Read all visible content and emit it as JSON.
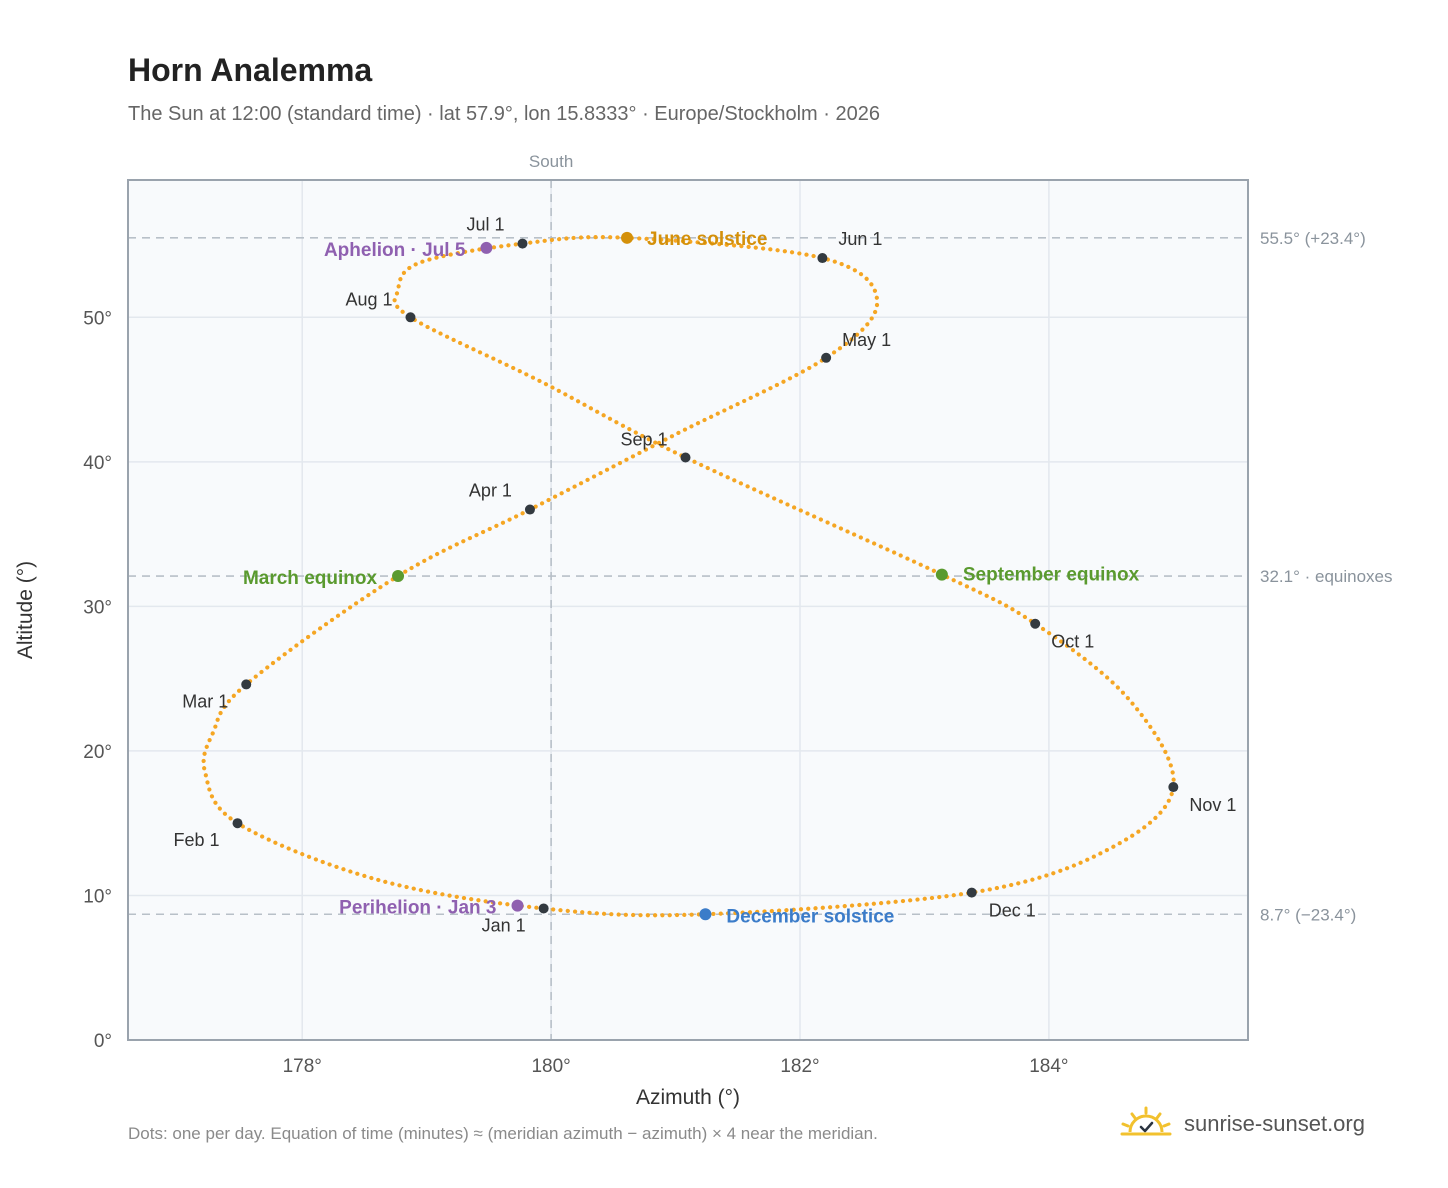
{
  "title": "Horn Analemma",
  "subtitle": "The Sun at 12:00 (standard time) · lat 57.9°, lon 15.8333° · Europe/Stockholm · 2026",
  "footer_note": "Dots: one per day. Equation of time (minutes) ≈ (meridian azimuth − azimuth) × 4 near the meridian.",
  "brand": {
    "text": "sunrise-sunset.org",
    "icon": "sun-logo-icon"
  },
  "colors": {
    "path": "#f5a623",
    "month_marker": "#333a40",
    "equinox": "#5a9a2f",
    "june_solstice": "#d4900a",
    "december_solstice": "#3b7cc9",
    "aphelion_perihelion": "#8f60b0",
    "plot_bg": "#f8fafc",
    "grid": "#e3e8ee",
    "frame": "#9aa3ad",
    "reference_line": "#b8c0c8"
  },
  "chart_data": {
    "type": "scatter",
    "xlabel": "Azimuth (°)",
    "ylabel": "Altitude (°)",
    "xlim": [
      176.6,
      185.6
    ],
    "ylim": [
      0,
      59.5
    ],
    "xticks": [
      178,
      180,
      182,
      184
    ],
    "xtick_labels": [
      "178°",
      "180°",
      "182°",
      "184°"
    ],
    "yticks": [
      0,
      10,
      20,
      30,
      40,
      50
    ],
    "ytick_labels": [
      "0°",
      "10°",
      "20°",
      "30°",
      "40°",
      "50°"
    ],
    "grid": true,
    "meridian": {
      "azimuth": 180,
      "label": "South"
    },
    "reference_lines": [
      {
        "altitude": 55.5,
        "label": "55.5° (+23.4°)"
      },
      {
        "altitude": 32.1,
        "label": "32.1° · equinoxes"
      },
      {
        "altitude": 8.7,
        "label": "8.7° (−23.4°)"
      }
    ],
    "daily_path": [
      {
        "date": "Jan 1",
        "az": 179.94,
        "alt": 9.1
      },
      {
        "date": "Jan 15",
        "az": 178.6,
        "alt": 11.1
      },
      {
        "date": "Feb 1",
        "az": 177.48,
        "alt": 15.0
      },
      {
        "date": "Feb 12",
        "az": 177.22,
        "alt": 18.5
      },
      {
        "date": "Feb 20",
        "az": 177.28,
        "alt": 21.2
      },
      {
        "date": "Mar 1",
        "az": 177.55,
        "alt": 24.6
      },
      {
        "date": "Mar 20",
        "az": 178.77,
        "alt": 32.1
      },
      {
        "date": "Apr 1",
        "az": 179.83,
        "alt": 36.7
      },
      {
        "date": "Apr 15",
        "az": 181.0,
        "alt": 41.9
      },
      {
        "date": "May 1",
        "az": 182.21,
        "alt": 47.2
      },
      {
        "date": "May 14",
        "az": 182.62,
        "alt": 51.1
      },
      {
        "date": "Jun 1",
        "az": 182.18,
        "alt": 54.1
      },
      {
        "date": "Jun 21",
        "az": 180.61,
        "alt": 55.5
      },
      {
        "date": "Jul 1",
        "az": 179.77,
        "alt": 55.1
      },
      {
        "date": "Jul 15",
        "az": 178.95,
        "alt": 53.8
      },
      {
        "date": "Jul 25",
        "az": 178.77,
        "alt": 51.9
      },
      {
        "date": "Aug 1",
        "az": 178.87,
        "alt": 50.0
      },
      {
        "date": "Aug 15",
        "az": 179.93,
        "alt": 45.5
      },
      {
        "date": "Sep 1",
        "az": 181.08,
        "alt": 40.3
      },
      {
        "date": "Sep 23",
        "az": 183.14,
        "alt": 32.2
      },
      {
        "date": "Oct 1",
        "az": 183.89,
        "alt": 28.8
      },
      {
        "date": "Oct 15",
        "az": 184.65,
        "alt": 23.5
      },
      {
        "date": "Nov 1",
        "az": 185.0,
        "alt": 17.5
      },
      {
        "date": "Nov 15",
        "az": 184.48,
        "alt": 13.2
      },
      {
        "date": "Dec 1",
        "az": 183.38,
        "alt": 10.2
      },
      {
        "date": "Dec 21",
        "az": 181.24,
        "alt": 8.7
      }
    ],
    "month_markers": [
      {
        "label": "Jan 1",
        "az": 179.94,
        "alt": 9.1
      },
      {
        "label": "Feb 1",
        "az": 177.48,
        "alt": 15.0
      },
      {
        "label": "Mar 1",
        "az": 177.55,
        "alt": 24.6
      },
      {
        "label": "Apr 1",
        "az": 179.83,
        "alt": 36.7
      },
      {
        "label": "May 1",
        "az": 182.21,
        "alt": 47.2
      },
      {
        "label": "Jun 1",
        "az": 182.18,
        "alt": 54.1
      },
      {
        "label": "Jul 1",
        "az": 179.77,
        "alt": 55.1
      },
      {
        "label": "Aug 1",
        "az": 178.87,
        "alt": 50.0
      },
      {
        "label": "Sep 1",
        "az": 181.08,
        "alt": 40.3
      },
      {
        "label": "Oct 1",
        "az": 183.89,
        "alt": 28.8
      },
      {
        "label": "Nov 1",
        "az": 185.0,
        "alt": 17.5
      },
      {
        "label": "Dec 1",
        "az": 183.38,
        "alt": 10.2
      }
    ],
    "events": [
      {
        "label": "March equinox",
        "az": 178.77,
        "alt": 32.1,
        "color_key": "equinox"
      },
      {
        "label": "September equinox",
        "az": 183.14,
        "alt": 32.2,
        "color_key": "equinox"
      },
      {
        "label": "June solstice",
        "az": 180.61,
        "alt": 55.5,
        "color_key": "june_solstice"
      },
      {
        "label": "December solstice",
        "az": 181.24,
        "alt": 8.7,
        "color_key": "december_solstice"
      },
      {
        "label": "Aphelion · Jul 5",
        "az": 179.48,
        "alt": 54.8,
        "color_key": "aphelion_perihelion"
      },
      {
        "label": "Perihelion · Jan 3",
        "az": 179.73,
        "alt": 9.3,
        "color_key": "aphelion_perihelion"
      }
    ]
  }
}
